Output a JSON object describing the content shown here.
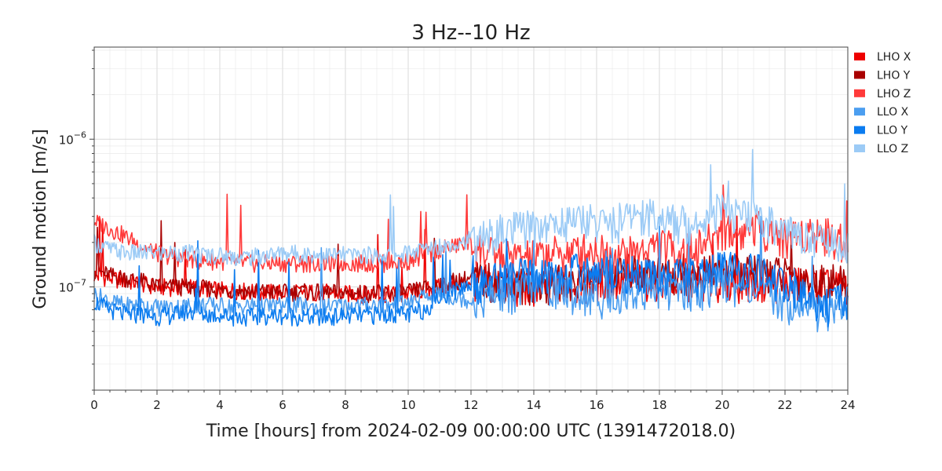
{
  "chart_data": {
    "type": "line",
    "title": "3 Hz--10 Hz",
    "xlabel": "Time [hours] from 2024-02-09 00:00:00 UTC (1391472018.0)",
    "ylabel": "Ground motion [m/s]",
    "xlim": [
      0,
      24
    ],
    "ylim": [
      2e-08,
      4.2e-06
    ],
    "yscale": "log",
    "x_ticks": [
      0,
      2,
      4,
      6,
      8,
      10,
      12,
      14,
      16,
      18,
      20,
      22,
      24
    ],
    "x_tick_labels": [
      "0",
      "2",
      "4",
      "6",
      "8",
      "10",
      "12",
      "14",
      "16",
      "18",
      "20",
      "22",
      "24"
    ],
    "y_ticks": [
      1e-07,
      1e-06
    ],
    "y_tick_labels": [
      {
        "base": "10",
        "exp": "−7"
      },
      {
        "base": "10",
        "exp": "−6"
      }
    ],
    "grid": true,
    "legend_position": "right",
    "x": [
      0,
      0.5,
      1,
      1.5,
      2,
      2.5,
      3,
      3.5,
      4,
      4.5,
      5,
      5.5,
      6,
      6.5,
      7,
      7.5,
      8,
      8.5,
      9,
      9.5,
      10,
      10.5,
      11,
      11.5,
      12,
      12.5,
      13,
      13.5,
      14,
      14.5,
      15,
      15.5,
      16,
      16.5,
      17,
      17.5,
      18,
      18.5,
      19,
      19.5,
      20,
      20.5,
      21,
      21.5,
      22,
      22.5,
      23,
      23.5,
      24
    ],
    "series": [
      {
        "name": "LHO X",
        "color": "#ee0000",
        "values": [
          1.2e-07,
          1.15e-07,
          1.1e-07,
          1.05e-07,
          1e-07,
          1e-07,
          1e-07,
          9.8e-08,
          9.5e-08,
          9.5e-08,
          9.3e-08,
          9.2e-08,
          9.2e-08,
          9.2e-08,
          9.2e-08,
          9.2e-08,
          9e-08,
          9e-08,
          9e-08,
          9e-08,
          9e-08,
          9.5e-08,
          1e-07,
          1.05e-07,
          1.1e-07,
          1.1e-07,
          1.05e-07,
          1e-07,
          1e-07,
          1e-07,
          1.05e-07,
          1.05e-07,
          1.1e-07,
          1.1e-07,
          1.1e-07,
          1.1e-07,
          1.15e-07,
          1.1e-07,
          1.1e-07,
          1.1e-07,
          1.1e-07,
          1.1e-07,
          1.1e-07,
          1.1e-07,
          1.05e-07,
          1.05e-07,
          1.05e-07,
          1e-07,
          1e-07
        ]
      },
      {
        "name": "LHO Y",
        "color": "#a90000",
        "values": [
          1.3e-07,
          1.2e-07,
          1.15e-07,
          1.1e-07,
          1e-07,
          1e-07,
          1e-07,
          9.8e-08,
          9.5e-08,
          9.6e-08,
          9.3e-08,
          9.3e-08,
          9.2e-08,
          9.3e-08,
          9.2e-08,
          9.2e-08,
          9.1e-08,
          9.1e-08,
          9.1e-08,
          9.1e-08,
          9.2e-08,
          9.8e-08,
          1.05e-07,
          1.1e-07,
          1.15e-07,
          1.12e-07,
          1.1e-07,
          1.05e-07,
          1.05e-07,
          1.05e-07,
          1.1e-07,
          1.1e-07,
          1.15e-07,
          1.2e-07,
          1.3e-07,
          1.25e-07,
          1.3e-07,
          1.2e-07,
          1.2e-07,
          1.25e-07,
          1.3e-07,
          1.25e-07,
          1.3e-07,
          1.3e-07,
          1.2e-07,
          1.15e-07,
          1.1e-07,
          1.1e-07,
          1.05e-07
        ]
      },
      {
        "name": "LHO Z",
        "color": "#ff3a3a",
        "values": [
          2.8e-07,
          2.5e-07,
          2.2e-07,
          1.9e-07,
          1.7e-07,
          1.6e-07,
          1.55e-07,
          1.5e-07,
          1.5e-07,
          1.45e-07,
          1.45e-07,
          1.45e-07,
          1.45e-07,
          1.45e-07,
          1.45e-07,
          1.45e-07,
          1.45e-07,
          1.45e-07,
          1.45e-07,
          1.45e-07,
          1.5e-07,
          1.6e-07,
          1.8e-07,
          1.9e-07,
          2e-07,
          1.7e-07,
          1.6e-07,
          1.6e-07,
          1.6e-07,
          1.7e-07,
          1.7e-07,
          1.8e-07,
          1.8e-07,
          1.7e-07,
          1.7e-07,
          1.8e-07,
          2e-07,
          1.8e-07,
          1.8e-07,
          2e-07,
          2.5e-07,
          2.3e-07,
          2.6e-07,
          2.4e-07,
          2.2e-07,
          2.3e-07,
          2.4e-07,
          2.2e-07,
          2e-07
        ]
      },
      {
        "name": "LLO X",
        "color": "#4b9ef0",
        "values": [
          9e-08,
          8e-08,
          7.5e-08,
          7.5e-08,
          7.3e-08,
          7.3e-08,
          7.5e-08,
          7.6e-08,
          7.5e-08,
          7.3e-08,
          7.5e-08,
          7.4e-08,
          7.5e-08,
          7.5e-08,
          7.3e-08,
          7.4e-08,
          7.5e-08,
          7.5e-08,
          7.6e-08,
          7.5e-08,
          7.8e-08,
          8.5e-08,
          9e-08,
          8.5e-08,
          8.2e-08,
          8.5e-08,
          9e-08,
          9.5e-08,
          1e-07,
          1e-07,
          9.5e-08,
          9e-08,
          8.5e-08,
          8.5e-08,
          9e-08,
          9.5e-08,
          1e-07,
          9.5e-08,
          9.5e-08,
          1e-07,
          1.1e-07,
          1e-07,
          1e-07,
          9e-08,
          8e-08,
          7.5e-08,
          7e-08,
          7e-08,
          8e-08
        ]
      },
      {
        "name": "LLO Y",
        "color": "#0b7cf0",
        "values": [
          8e-08,
          7e-08,
          6.5e-08,
          6.5e-08,
          6.3e-08,
          6.5e-08,
          6.8e-08,
          6.5e-08,
          6.5e-08,
          6.2e-08,
          6.3e-08,
          6.4e-08,
          6.4e-08,
          6.3e-08,
          6.2e-08,
          6.3e-08,
          6.4e-08,
          6.4e-08,
          6.5e-08,
          6.5e-08,
          6.5e-08,
          7e-08,
          8.5e-08,
          9.5e-08,
          1.05e-07,
          1.1e-07,
          1.15e-07,
          1.2e-07,
          1.2e-07,
          1.2e-07,
          1.25e-07,
          1.3e-07,
          1.3e-07,
          1.3e-07,
          1.25e-07,
          1.2e-07,
          1.2e-07,
          1.2e-07,
          1.2e-07,
          1.25e-07,
          1.35e-07,
          1.3e-07,
          1.3e-07,
          1.2e-07,
          1e-07,
          9e-08,
          8e-08,
          7.5e-08,
          8.5e-08
        ]
      },
      {
        "name": "LLO Z",
        "color": "#9ccbf6",
        "values": [
          2e-07,
          1.8e-07,
          1.7e-07,
          1.7e-07,
          1.7e-07,
          1.7e-07,
          1.7e-07,
          1.65e-07,
          1.65e-07,
          1.6e-07,
          1.6e-07,
          1.65e-07,
          1.7e-07,
          1.7e-07,
          1.65e-07,
          1.65e-07,
          1.65e-07,
          1.65e-07,
          1.65e-07,
          1.65e-07,
          1.7e-07,
          1.8e-07,
          1.9e-07,
          2e-07,
          2.1e-07,
          2.2e-07,
          2.4e-07,
          2.5e-07,
          2.6e-07,
          2.6e-07,
          2.8e-07,
          2.9e-07,
          2.8e-07,
          2.7e-07,
          3e-07,
          3.2e-07,
          3e-07,
          2.8e-07,
          2.7e-07,
          3e-07,
          3.5e-07,
          3e-07,
          3e-07,
          2.8e-07,
          2.4e-07,
          2.3e-07,
          2.2e-07,
          2e-07,
          1.9e-07
        ]
      }
    ]
  }
}
